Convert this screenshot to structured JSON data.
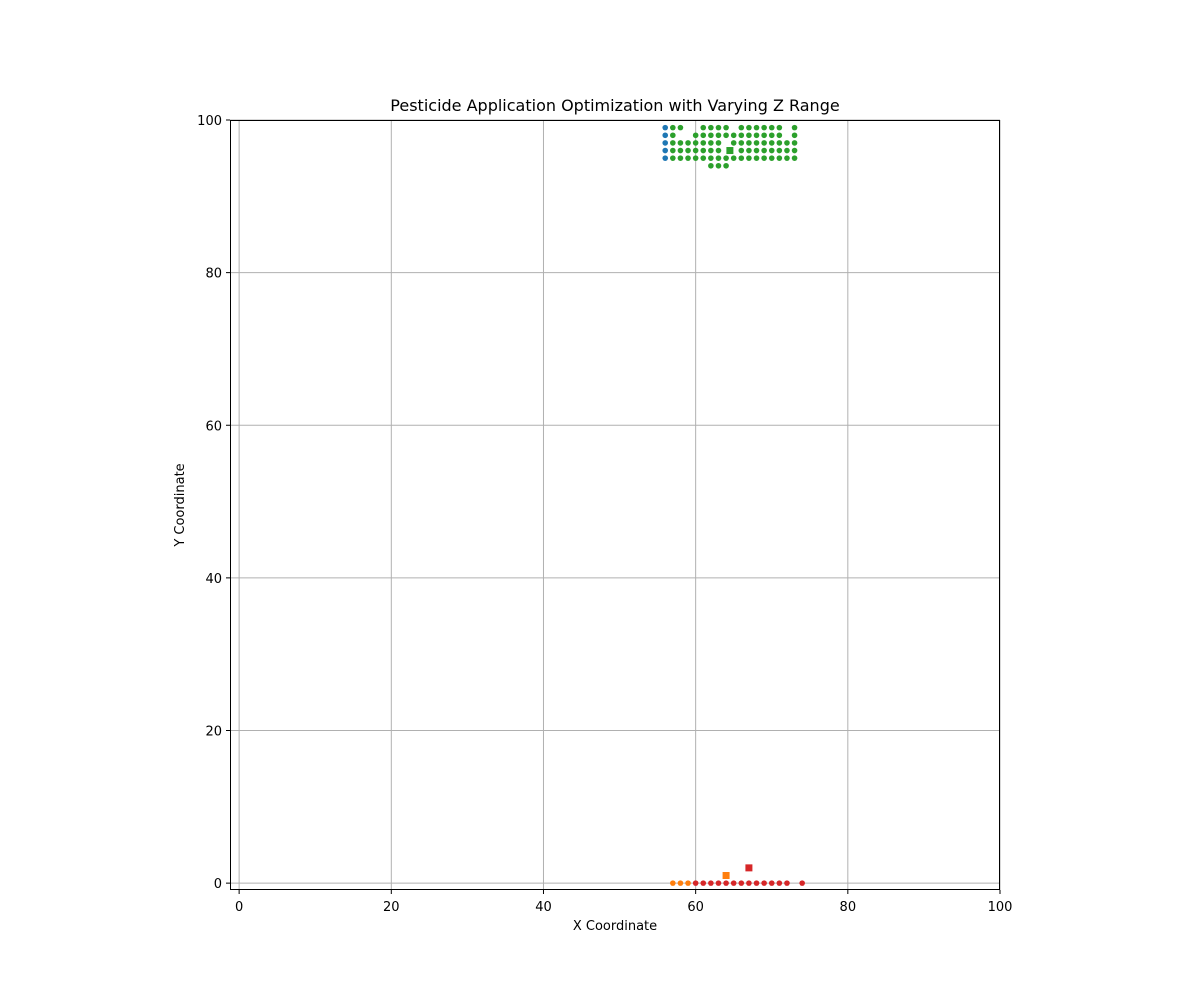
{
  "chart_data": {
    "type": "scatter",
    "title": "Pesticide Application Optimization with Varying Z Range",
    "xlabel": "X Coordinate",
    "ylabel": "Y Coordinate",
    "xlim": [
      -1.2,
      100
    ],
    "ylim": [
      -0.9,
      100
    ],
    "x_ticks": [
      0,
      20,
      40,
      60,
      80,
      100
    ],
    "y_ticks": [
      0,
      20,
      40,
      60,
      80,
      100
    ],
    "grid": true,
    "legend": "none",
    "series": [
      {
        "color": "#1f77b4",
        "marker": "circle",
        "points": [
          [
            56,
            99
          ],
          [
            56,
            98
          ],
          [
            56,
            97
          ],
          [
            56,
            96
          ],
          [
            56,
            95
          ]
        ]
      },
      {
        "color": "#2ca02c",
        "marker": "circle",
        "points": [
          [
            57,
            99
          ],
          [
            58,
            99
          ],
          [
            61,
            99
          ],
          [
            62,
            99
          ],
          [
            63,
            99
          ],
          [
            64,
            99
          ],
          [
            66,
            99
          ],
          [
            67,
            99
          ],
          [
            68,
            99
          ],
          [
            69,
            99
          ],
          [
            70,
            99
          ],
          [
            71,
            99
          ],
          [
            73,
            99
          ],
          [
            57,
            98
          ],
          [
            60,
            98
          ],
          [
            61,
            98
          ],
          [
            62,
            98
          ],
          [
            63,
            98
          ],
          [
            64,
            98
          ],
          [
            65,
            98
          ],
          [
            66,
            98
          ],
          [
            67,
            98
          ],
          [
            68,
            98
          ],
          [
            69,
            98
          ],
          [
            70,
            98
          ],
          [
            71,
            98
          ],
          [
            73,
            98
          ],
          [
            57,
            97
          ],
          [
            58,
            97
          ],
          [
            59,
            97
          ],
          [
            60,
            97
          ],
          [
            61,
            97
          ],
          [
            62,
            97
          ],
          [
            63,
            97
          ],
          [
            65,
            97
          ],
          [
            66,
            97
          ],
          [
            67,
            97
          ],
          [
            68,
            97
          ],
          [
            69,
            97
          ],
          [
            70,
            97
          ],
          [
            71,
            97
          ],
          [
            72,
            97
          ],
          [
            73,
            97
          ],
          [
            57,
            96
          ],
          [
            58,
            96
          ],
          [
            59,
            96
          ],
          [
            60,
            96
          ],
          [
            61,
            96
          ],
          [
            62,
            96
          ],
          [
            63,
            96
          ],
          [
            66,
            96
          ],
          [
            67,
            96
          ],
          [
            68,
            96
          ],
          [
            69,
            96
          ],
          [
            70,
            96
          ],
          [
            71,
            96
          ],
          [
            72,
            96
          ],
          [
            73,
            96
          ],
          [
            57,
            95
          ],
          [
            58,
            95
          ],
          [
            59,
            95
          ],
          [
            60,
            95
          ],
          [
            61,
            95
          ],
          [
            62,
            95
          ],
          [
            63,
            95
          ],
          [
            64,
            95
          ],
          [
            65,
            95
          ],
          [
            66,
            95
          ],
          [
            67,
            95
          ],
          [
            68,
            95
          ],
          [
            69,
            95
          ],
          [
            70,
            95
          ],
          [
            71,
            95
          ],
          [
            72,
            95
          ],
          [
            73,
            95
          ],
          [
            62,
            94
          ],
          [
            63,
            94
          ],
          [
            64,
            94
          ]
        ]
      },
      {
        "color": "#ff7f0e",
        "marker": "circle",
        "points": [
          [
            57,
            0
          ],
          [
            58,
            0
          ],
          [
            59,
            0
          ]
        ]
      },
      {
        "color": "#d62728",
        "marker": "circle",
        "points": [
          [
            60,
            0
          ],
          [
            61,
            0
          ],
          [
            62,
            0
          ],
          [
            63,
            0
          ],
          [
            64,
            0
          ],
          [
            65,
            0
          ],
          [
            66,
            0
          ],
          [
            67,
            0
          ],
          [
            68,
            0
          ],
          [
            69,
            0
          ],
          [
            70,
            0
          ],
          [
            71,
            0
          ],
          [
            72,
            0
          ],
          [
            74,
            0
          ]
        ]
      }
    ],
    "centers": [
      {
        "color": "#2ca02c",
        "marker": "square",
        "x": 64.5,
        "y": 96
      },
      {
        "color": "#ff7f0e",
        "marker": "square",
        "x": 64,
        "y": 1
      },
      {
        "color": "#d62728",
        "marker": "square",
        "x": 67,
        "y": 2
      }
    ]
  }
}
